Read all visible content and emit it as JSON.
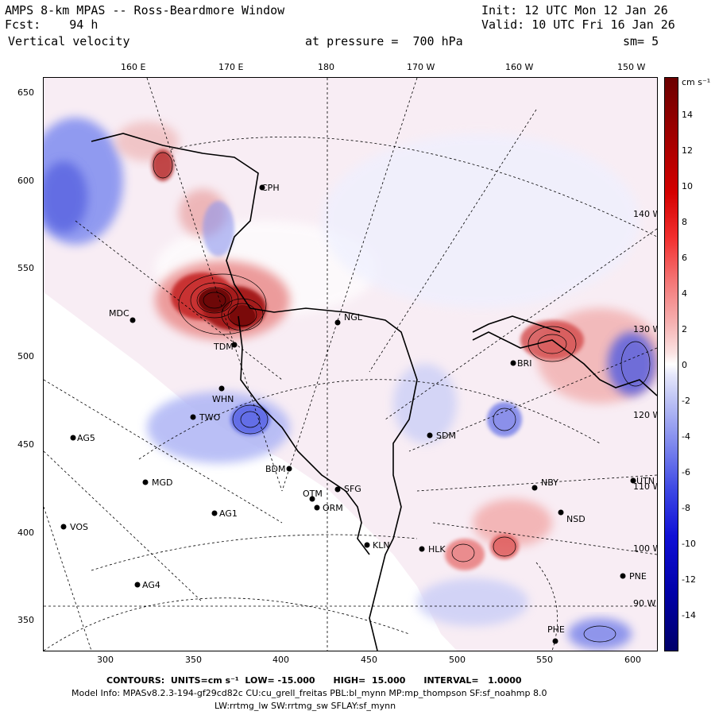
{
  "header": {
    "title": "AMPS 8-km MPAS -- Ross-Beardmore Window",
    "forecast": "Fcst:    94 h",
    "field": "Vertical velocity",
    "init": "Init: 12 UTC Mon 12 Jan 26",
    "valid": "Valid: 10 UTC Fri 16 Jan 26",
    "pressure": "at pressure =  700 hPa",
    "smoothing": "sm= 5"
  },
  "top_ticks": [
    "160 E",
    "170 E",
    "180",
    "170 W",
    "160 W",
    "150 W"
  ],
  "left_ticks": [
    "650",
    "600",
    "550",
    "500",
    "450",
    "400",
    "350"
  ],
  "bottom_ticks": [
    "300",
    "350",
    "400",
    "450",
    "500",
    "550",
    "600"
  ],
  "right_meridians": [
    "140 W",
    "130 W",
    "120 W",
    "110 W",
    "100 W",
    "90 W"
  ],
  "colorbar": {
    "units": "cm s⁻¹",
    "labels": [
      "14",
      "12",
      "10",
      "8",
      "6",
      "4",
      "2",
      "0",
      "-2",
      "-4",
      "-6",
      "-8",
      "-10",
      "-12",
      "-14"
    ],
    "min": -15,
    "max": 15
  },
  "stations": [
    {
      "id": "CPH"
    },
    {
      "id": "NGL"
    },
    {
      "id": "MDC"
    },
    {
      "id": "TDM"
    },
    {
      "id": "WHN"
    },
    {
      "id": "TWO"
    },
    {
      "id": "AG5"
    },
    {
      "id": "SDM"
    },
    {
      "id": "BDM"
    },
    {
      "id": "MGD"
    },
    {
      "id": "SFG"
    },
    {
      "id": "OTM"
    },
    {
      "id": "ORM"
    },
    {
      "id": "AG1"
    },
    {
      "id": "VOS"
    },
    {
      "id": "KLN"
    },
    {
      "id": "HLK"
    },
    {
      "id": "NBY"
    },
    {
      "id": "NSD"
    },
    {
      "id": "AG4"
    },
    {
      "id": "PNE"
    },
    {
      "id": "PHE"
    },
    {
      "id": "UTN"
    },
    {
      "id": "BRI"
    }
  ],
  "footer": {
    "contours": "CONTOURS:  UNITS=cm s⁻¹  LOW= -15.000      HIGH=  15.000      INTERVAL=   1.0000",
    "model_info": "Model Info: MPASv8.2.3-194-gf29cd82c CU:cu_grell_freitas PBL:bl_mynn MP:mp_thompson SF:sf_noahmp 8.0",
    "model_info2": "LW:rrtmg_lw SW:rrtmg_sw SFLAY:sf_mynn"
  }
}
